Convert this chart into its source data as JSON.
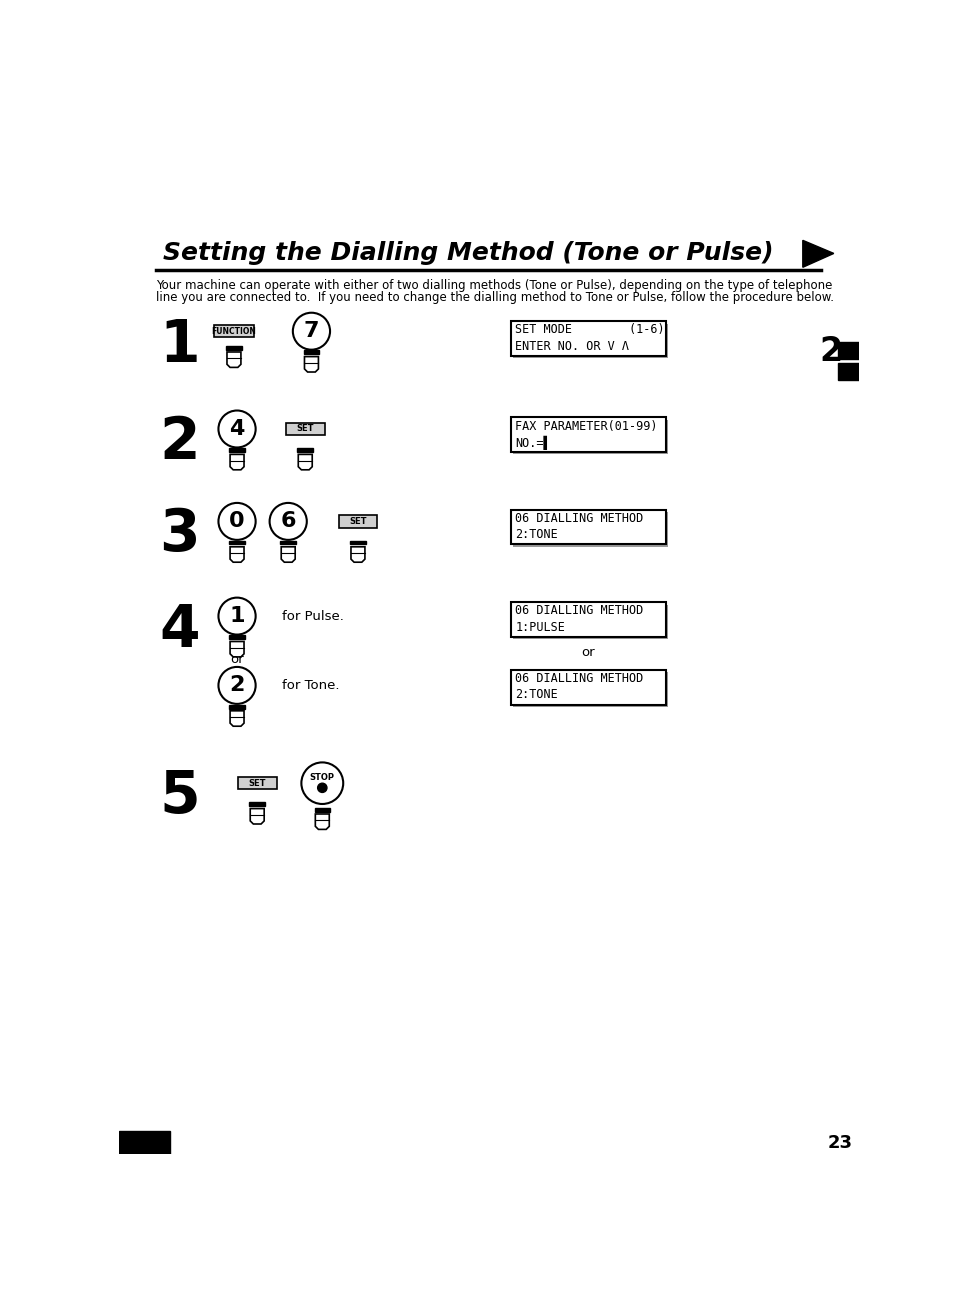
{
  "title": "Setting the Dialling Method (Tone or Pulse)",
  "bg_color": "#ffffff",
  "description_line1": "Your machine can operate with either of two dialling methods (Tone or Pulse), depending on the type of telephone",
  "description_line2": "line you are connected to.  If you need to change the dialling method to Tone or Pulse, follow the procedure below.",
  "step1_num": "1",
  "step2_num": "2",
  "step3_num": "3",
  "step4_num": "4",
  "step5_num": "5",
  "display1_line1": "SET MODE        (1-6)",
  "display1_line2": "ENTER NO. OR V Λ",
  "display2_line1": "FAX PARAMETER(01-99)",
  "display2_line2": "NO.=▌",
  "display3_line1": "06 DIALLING METHOD",
  "display3_line2": "2:TONE",
  "display4a_line1": "06 DIALLING METHOD",
  "display4a_line2": "1:PULSE",
  "display4b_line1": "06 DIALLING METHOD",
  "display4b_line2": "2:TONE",
  "page_number": "23",
  "chapter_number": "2"
}
